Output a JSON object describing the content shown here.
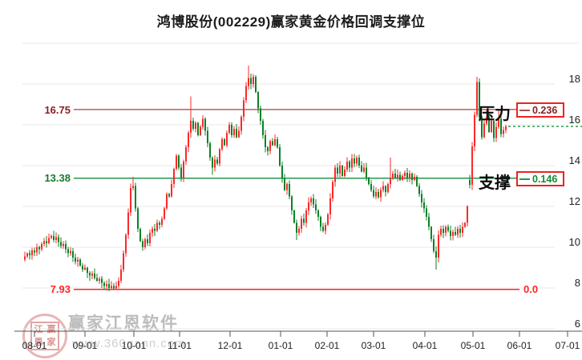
{
  "title": "鸿博股份(002229)赢家黄金价格回调支撑位",
  "watermark": {
    "brand": "赢家江恩软件",
    "url": "www.360gann.com",
    "seal": [
      "江",
      "赢",
      "恩",
      "家"
    ]
  },
  "chart_data": {
    "type": "candlestick",
    "title": "鸿博股份(002229)赢家黄金价格回调支撑位",
    "x_labels": [
      "08-01",
      "09-01",
      "10-01",
      "11-01",
      "12-01",
      "01-01",
      "02-01",
      "03-01",
      "04-01",
      "05-01",
      "06-01",
      "07-01"
    ],
    "y_tick_values": [
      20,
      18,
      16,
      14,
      12,
      10,
      8,
      6
    ],
    "y_tick_labels": [
      "",
      "18",
      "16",
      "14",
      "12",
      "10",
      "8",
      "6"
    ],
    "ylim": [
      5.9,
      20.2
    ],
    "grid": true,
    "levels": {
      "pressure": {
        "name": "压力",
        "price": 16.75,
        "price_label": "16.75",
        "retracement": "0.236"
      },
      "support": {
        "name": "支撑",
        "price": 13.38,
        "price_label": "13.38",
        "retracement": "0.146"
      },
      "zero": {
        "price": 7.93,
        "price_label": "7.93",
        "value_label": "0.0"
      }
    },
    "last_price": 15.92,
    "first_open": 9.4,
    "closes": [
      9.55,
      9.7,
      9.6,
      9.85,
      9.75,
      10.0,
      9.9,
      10.15,
      10.3,
      10.2,
      10.45,
      10.55,
      10.35,
      10.5,
      10.25,
      10.05,
      10.15,
      9.9,
      9.7,
      9.8,
      9.5,
      9.3,
      9.4,
      9.1,
      8.9,
      9.0,
      8.75,
      8.6,
      8.7,
      8.5,
      8.35,
      8.45,
      8.25,
      8.1,
      8.2,
      8.0,
      8.1,
      7.98,
      8.1,
      8.35,
      8.9,
      9.7,
      10.6,
      11.7,
      12.9,
      13.0,
      11.9,
      10.9,
      10.3,
      10.0,
      10.4,
      10.2,
      10.7,
      10.9,
      10.8,
      11.2,
      11.1,
      11.4,
      11.9,
      12.6,
      12.5,
      13.1,
      13.85,
      14.5,
      13.9,
      13.4,
      14.2,
      14.9,
      15.6,
      16.2,
      15.8,
      16.1,
      15.5,
      15.9,
      16.3,
      15.7,
      15.1,
      14.4,
      13.9,
      14.3,
      14.1,
      14.8,
      15.3,
      15.0,
      15.6,
      16.0,
      15.5,
      15.8,
      15.4,
      15.7,
      16.4,
      17.2,
      17.9,
      18.3,
      18.0,
      18.35,
      17.6,
      16.8,
      16.2,
      15.5,
      14.9,
      14.7,
      15.2,
      15.0,
      15.3,
      14.9,
      14.0,
      13.35,
      12.8,
      13.1,
      12.5,
      11.8,
      11.2,
      10.7,
      10.9,
      11.4,
      11.2,
      11.8,
      12.2,
      12.4,
      12.1,
      11.8,
      11.5,
      11.0,
      10.8,
      11.1,
      11.6,
      12.4,
      13.2,
      13.9,
      13.6,
      14.0,
      13.5,
      13.8,
      14.2,
      13.9,
      14.35,
      14.1,
      14.4,
      14.0,
      13.7,
      13.9,
      13.4,
      13.1,
      12.8,
      12.5,
      12.7,
      12.45,
      12.8,
      13.0,
      12.7,
      13.1,
      13.35,
      13.6,
      13.4,
      13.55,
      13.3,
      13.5,
      13.65,
      13.4,
      13.6,
      13.3,
      13.45,
      13.0,
      12.6,
      12.2,
      11.9,
      11.5,
      11.0,
      10.4,
      9.8,
      9.5,
      10.6,
      10.9,
      10.7,
      11.0,
      10.8,
      10.55,
      10.75,
      10.6,
      10.9,
      10.7,
      11.0,
      11.2,
      12.0,
      13.05,
      14.95,
      16.5,
      18.1,
      16.4,
      15.4,
      16.05,
      16.4,
      15.65,
      16.2,
      15.35,
      15.9,
      16.3,
      15.55,
      15.75,
      15.92
    ],
    "open_overrides": {
      "185": 13.3
    },
    "wick_overrides": {
      "36": {
        "low": 7.95
      },
      "37": {
        "low": 7.93
      },
      "45": {
        "high": 13.45
      },
      "69": {
        "high": 17.4
      },
      "78": {
        "low": 13.55
      },
      "93": {
        "high": 18.9
      },
      "95": {
        "high": 18.5
      },
      "113": {
        "low": 10.35
      },
      "152": {
        "high": 14.4
      },
      "171": {
        "low": 8.9
      },
      "188": {
        "high": 18.35
      },
      "192": {
        "high": 16.75
      },
      "197": {
        "high": 16.7
      }
    },
    "colors": {
      "up": "#fb2929",
      "down": "#0b8126",
      "pressure_line": "#b26060",
      "support_line": "#23994a",
      "zero_line": "#ff2626",
      "last_price_line": "#23a04a",
      "grid": "#e7e7e7",
      "axis": "#555555",
      "tick_text": "#222222"
    },
    "legend_position": "none"
  }
}
